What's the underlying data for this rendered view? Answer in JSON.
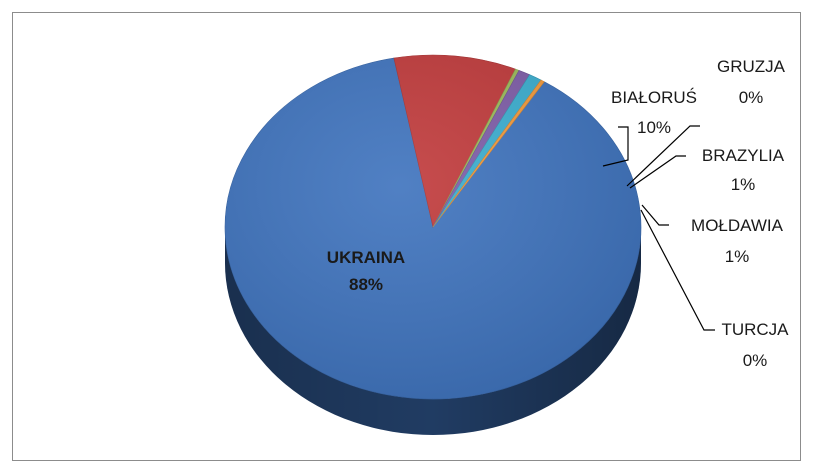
{
  "chart_data": {
    "type": "pie",
    "style": "3d",
    "title": "",
    "legend": "none",
    "slices": [
      {
        "label": "UKRAINA",
        "value": 88,
        "value_label": "88%",
        "color": "#3d72bd"
      },
      {
        "label": "BIAŁORUŚ",
        "value": 9.5,
        "value_label": "10%",
        "color": "#c0393a"
      },
      {
        "label": "GRUZJA",
        "value": 0.3,
        "value_label": "0%",
        "color": "#9bbb59"
      },
      {
        "label": "BRAZYLIA",
        "value": 0.9,
        "value_label": "1%",
        "color": "#7e5ca8"
      },
      {
        "label": "MOŁDAWIA",
        "value": 1.0,
        "value_label": "1%",
        "color": "#3aaed0"
      },
      {
        "label": "TURCJA",
        "value": 0.3,
        "value_label": "0%",
        "color": "#f49a3a"
      }
    ]
  }
}
